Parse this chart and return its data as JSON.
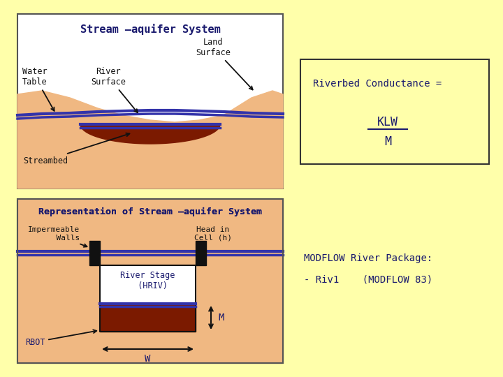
{
  "bg_color": "#FFFFAA",
  "title1": "Stream –aquifer System",
  "title2": "Representation of Stream –aquifer System",
  "sand_color": "#F0B882",
  "water_color": "#3333AA",
  "streambed_color": "#7B1A00",
  "label_color": "#1a1a6e",
  "black_color": "#111111",
  "conductance_text": "Riverbed Conductance =",
  "klw_text": "KLW",
  "m_text": "M",
  "modflow_text": "MODFLOW River Package:",
  "riv1_text": "- Riv1    (MODFLOW 83)"
}
